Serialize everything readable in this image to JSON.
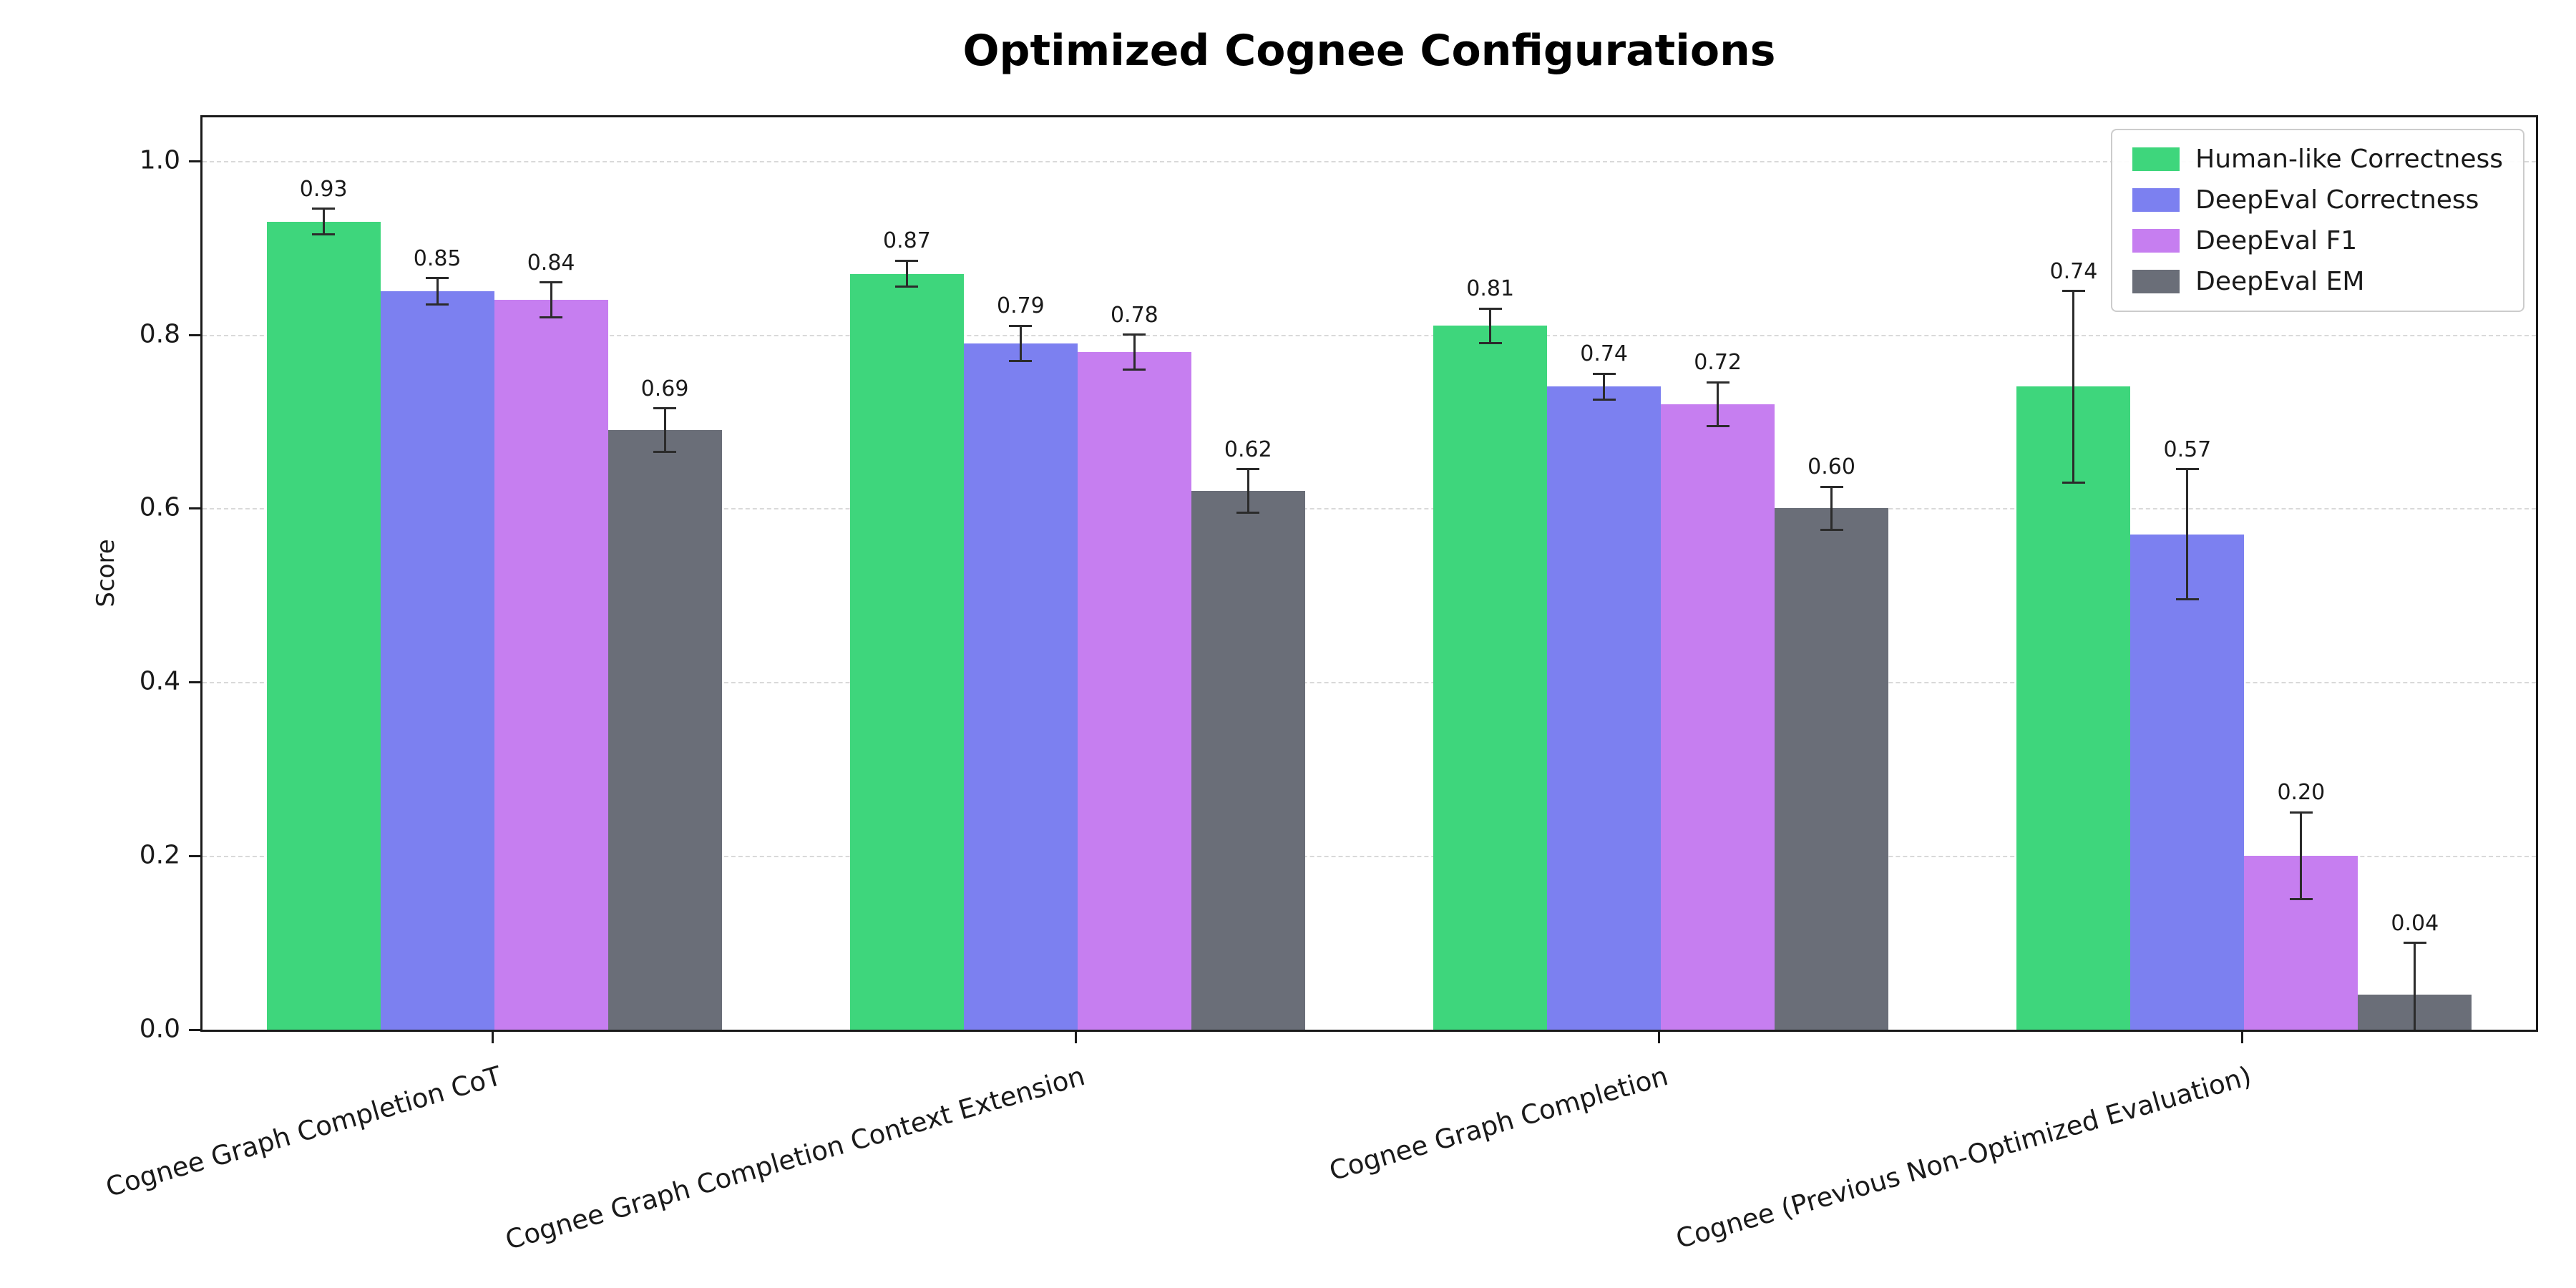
{
  "chart_data": {
    "type": "bar",
    "title": "Optimized Cognee Configurations",
    "xlabel": "",
    "ylabel": "Score",
    "ylim": [
      0,
      1.05
    ],
    "yticks": [
      0.0,
      0.2,
      0.4,
      0.6,
      0.8,
      1.0
    ],
    "grid": "horizontal-dashed",
    "legend_position": "upper-right",
    "error_bars": true,
    "error_bar_color": "#2b2b2b",
    "categories": [
      "Cognee Graph Completion CoT",
      "Cognee Graph Completion Context Extension",
      "Cognee Graph Completion",
      "Cognee (Previous Non-Optimized Evaluation)"
    ],
    "series": [
      {
        "name": "Human-like Correctness",
        "color": "#3ed67c",
        "values": [
          0.93,
          0.87,
          0.81,
          0.74
        ],
        "errors": [
          0.015,
          0.015,
          0.02,
          0.11
        ]
      },
      {
        "name": "DeepEval Correctness",
        "color": "#7c80f0",
        "values": [
          0.85,
          0.79,
          0.74,
          0.57
        ],
        "errors": [
          0.015,
          0.02,
          0.015,
          0.075
        ]
      },
      {
        "name": "DeepEval F1",
        "color": "#c67ef0",
        "values": [
          0.84,
          0.78,
          0.72,
          0.2
        ],
        "errors": [
          0.02,
          0.02,
          0.025,
          0.05
        ]
      },
      {
        "name": "DeepEval EM",
        "color": "#6a6e78",
        "values": [
          0.69,
          0.62,
          0.6,
          0.04
        ],
        "errors": [
          0.025,
          0.025,
          0.025,
          0.06
        ]
      }
    ]
  }
}
